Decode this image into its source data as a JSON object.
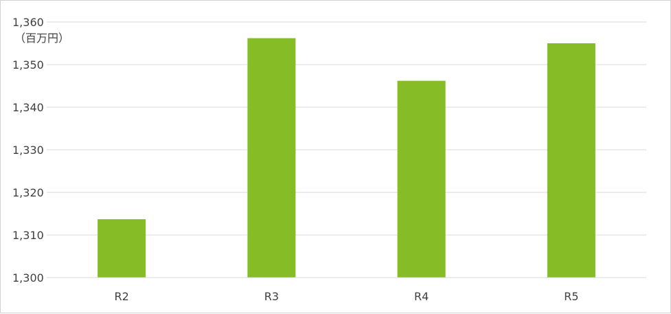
{
  "chart_data": {
    "type": "bar",
    "title": "",
    "xlabel": "",
    "ylabel": "（百万円）",
    "categories": [
      "R2",
      "R3",
      "R4",
      "R5"
    ],
    "values": [
      1313.7,
      1356.2,
      1346.2,
      1355.0
    ],
    "ylim": [
      1300,
      1360
    ],
    "yticks": [
      1300,
      1310,
      1320,
      1330,
      1340,
      1350,
      1360
    ],
    "ytick_labels": [
      "1,300",
      "1,310",
      "1,320",
      "1,330",
      "1,340",
      "1,350",
      "1,360"
    ],
    "grid": true,
    "legend": "none",
    "bar_color": "#86bc25",
    "grid_color": "#d9d9d9"
  }
}
